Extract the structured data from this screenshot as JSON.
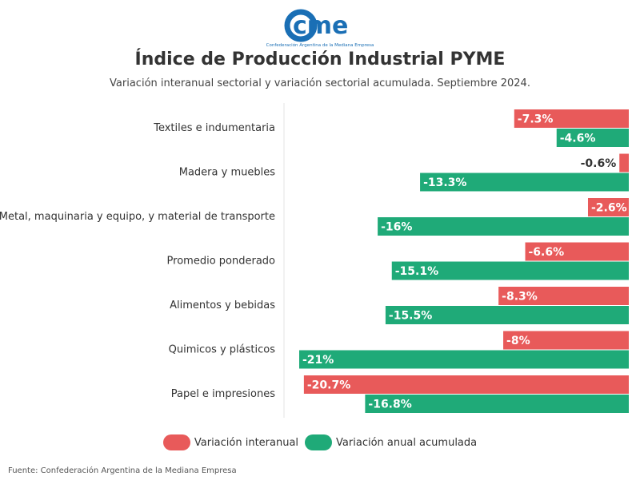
{
  "header": {
    "logo_text": "cme",
    "logo_caption": "Confederación Argentina de la Mediana Empresa",
    "title": "Índice de Producción Industrial PYME",
    "subtitle": "Variación interanual sectorial y variación sectorial acumulada. Septiembre 2024."
  },
  "colors": {
    "interanual": "#e85a5a",
    "acumulada": "#1faa78",
    "brand": "#1a6fb5"
  },
  "chart_data": {
    "type": "bar",
    "orientation": "horizontal",
    "categories": [
      "Textiles e indumentaria",
      "Madera y muebles",
      "Metal, maquinaria y equipo, y material de transporte",
      "Promedio ponderado",
      "Alimentos y bebidas",
      "Quimicos y plásticos",
      "Papel e impresiones"
    ],
    "series": [
      {
        "name": "Variación interanual",
        "values": [
          -7.3,
          -0.6,
          -2.6,
          -6.6,
          -8.3,
          -8,
          -20.7
        ],
        "labels": [
          "-7.3%",
          "-0.6%",
          "-2.6%",
          "-6.6%",
          "-8.3%",
          "-8%",
          "-20.7%"
        ],
        "color": "#e85a5a"
      },
      {
        "name": "Variación anual acumulada",
        "values": [
          -4.6,
          -13.3,
          -16,
          -15.1,
          -15.5,
          -21,
          -16.8
        ],
        "labels": [
          "-4.6%",
          "-13.3%",
          "-16%",
          "-15.1%",
          "-15.5%",
          "-21%",
          "-16.8%"
        ],
        "color": "#1faa78"
      }
    ],
    "xlim": [
      -21,
      0
    ],
    "grid": false,
    "legend_position": "bottom"
  },
  "footer": {
    "source": "Fuente: Confederación Argentina de la Mediana Empresa"
  }
}
